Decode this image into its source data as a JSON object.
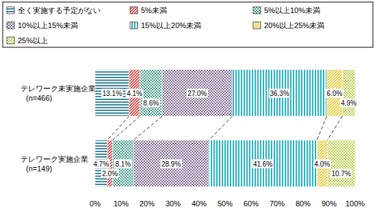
{
  "chart_data": {
    "type": "bar",
    "orientation": "horizontal",
    "stacked": true,
    "data_labels": true,
    "legend": "top",
    "grid": false,
    "categories": [
      "テレワーク未実施企業\n(n=466)",
      "テレワーク実施企業\n(n=149)"
    ],
    "xlim": [
      0,
      100
    ],
    "xticks": [
      {
        "value": 0,
        "label": "0%"
      },
      {
        "value": 10,
        "label": "10%"
      },
      {
        "value": 20,
        "label": "20%"
      },
      {
        "value": 30,
        "label": "30%"
      },
      {
        "value": 40,
        "label": "40%"
      },
      {
        "value": 50,
        "label": "50%"
      },
      {
        "value": 60,
        "label": "60%"
      },
      {
        "value": 70,
        "label": "70%"
      },
      {
        "value": 80,
        "label": "80%"
      },
      {
        "value": 90,
        "label": "90%"
      },
      {
        "value": 100,
        "label": "100%"
      }
    ],
    "series": [
      {
        "name": "全く実施する予定がない",
        "color": "#3a86a0",
        "values": [
          13.1,
          4.7
        ],
        "value_labels": [
          "13.1%",
          "4.7%"
        ]
      },
      {
        "name": "5%未満",
        "color": "#cc2a2a",
        "values": [
          4.1,
          2.0
        ],
        "value_labels": [
          "4.1%",
          "2.0%"
        ]
      },
      {
        "name": "5%以上10%未満",
        "color": "#3f9c86",
        "values": [
          8.6,
          8.1
        ],
        "value_labels": [
          "8.6%",
          "8.1%"
        ]
      },
      {
        "name": "10%以上15%未満",
        "color": "#7d6590",
        "values": [
          27.0,
          28.9
        ],
        "value_labels": [
          "27.0%",
          "28.9%"
        ]
      },
      {
        "name": "15%以上20%未満",
        "color": "#22b4c6",
        "values": [
          36.3,
          41.6
        ],
        "value_labels": [
          "36.3%",
          "41.6%"
        ]
      },
      {
        "name": "20%以上25%未満",
        "color": "#e6c21e",
        "values": [
          6.0,
          4.0
        ],
        "value_labels": [
          "6.0%",
          "4.0%"
        ]
      },
      {
        "name": "25%以上",
        "color": "#b9cf4a",
        "values": [
          4.9,
          10.7
        ],
        "value_labels": [
          "4.9%",
          "10.7%"
        ]
      }
    ]
  }
}
